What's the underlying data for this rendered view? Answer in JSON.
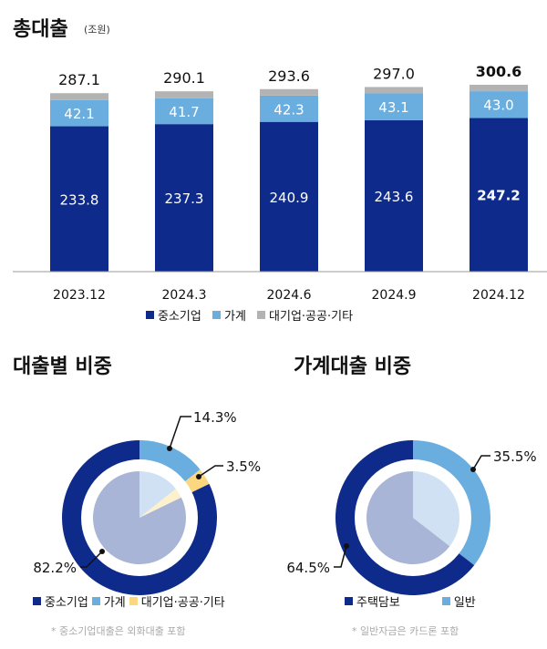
{
  "colors": {
    "sme": "#0e2a8a",
    "household": "#6aaee0",
    "other": "#b3b3b3",
    "other_pie": "#fcd77f"
  },
  "chart_data": [
    {
      "type": "bar",
      "stacked": true,
      "title": "총대출",
      "unit": "(조원)",
      "categories": [
        "2023.12",
        "2024.3",
        "2024.6",
        "2024.9",
        "2024.12"
      ],
      "series": [
        {
          "name": "중소기업",
          "values": [
            233.8,
            237.3,
            240.9,
            243.6,
            247.2
          ]
        },
        {
          "name": "가계",
          "values": [
            42.1,
            41.7,
            42.3,
            43.1,
            43.0
          ]
        },
        {
          "name": "대기업·공공·기타",
          "values": [
            11.2,
            11.1,
            10.4,
            10.3,
            10.4
          ]
        }
      ],
      "totals": [
        "287.1",
        "290.1",
        "293.6",
        "297.0",
        "300.6"
      ],
      "sme_labels": [
        "233.8",
        "237.3",
        "240.9",
        "243.6",
        "247.2"
      ],
      "household_labels": [
        "42.1",
        "41.7",
        "42.3",
        "43.1",
        "43.0"
      ],
      "legend": [
        "중소기업",
        "가계",
        "대기업·공공·기타"
      ],
      "legend_position": "bottom"
    },
    {
      "type": "pie",
      "title": "대출별 비중",
      "slices": [
        {
          "name": "가계",
          "value": 14.3,
          "label": "14.3%"
        },
        {
          "name": "대기업·공공·기타",
          "value": 3.5,
          "label": "3.5%"
        },
        {
          "name": "중소기업",
          "value": 82.2,
          "label": "82.2%"
        }
      ],
      "legend": [
        "중소기업",
        "가계",
        "대기업·공공·기타"
      ],
      "note": "* 중소기업대출은 외화대출 포함"
    },
    {
      "type": "pie",
      "title": "가계대출 비중",
      "slices": [
        {
          "name": "일반",
          "value": 35.5,
          "label": "35.5%"
        },
        {
          "name": "주택담보",
          "value": 64.5,
          "label": "64.5%"
        }
      ],
      "legend": [
        "주택담보",
        "일반"
      ],
      "note": "* 일반자금은 카드론 포함"
    }
  ]
}
